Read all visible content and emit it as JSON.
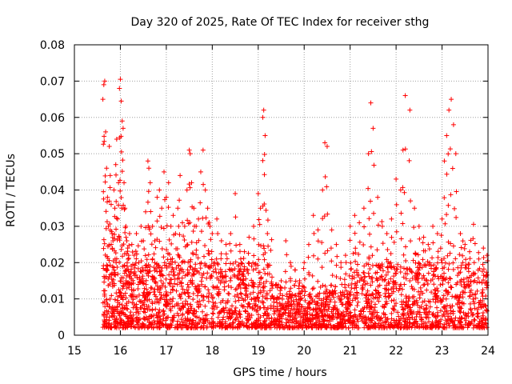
{
  "chart_data": {
    "type": "scatter",
    "title": "Day 320 of 2025, Rate Of TEC Index for receiver sthg",
    "xlabel": "GPS time / hours",
    "ylabel": "ROTI / TECUs",
    "xlim": [
      15,
      24
    ],
    "ylim": [
      0,
      0.08
    ],
    "x_ticks": [
      15,
      16,
      17,
      18,
      19,
      20,
      21,
      22,
      23,
      24
    ],
    "x_tick_labels": [
      "15",
      "16",
      "17",
      "18",
      "19",
      "20",
      "21",
      "22",
      "23",
      "24"
    ],
    "y_ticks": [
      0,
      0.01,
      0.02,
      0.03,
      0.04,
      0.05,
      0.06,
      0.07,
      0.08
    ],
    "y_tick_labels": [
      "0",
      "0.01",
      "0.02",
      "0.03",
      "0.04",
      "0.05",
      "0.06",
      "0.07",
      "0.08"
    ],
    "grid": true,
    "marker": "+",
    "marker_color": "#ff0000",
    "series": [
      {
        "name": "ROTI",
        "x": [
          15.62,
          15.64,
          15.66,
          15.68,
          15.7,
          15.72,
          15.74,
          15.76,
          15.78,
          15.8,
          15.82,
          15.84,
          15.86,
          15.88,
          15.9,
          15.92,
          15.94,
          15.96,
          15.98,
          16.0,
          16.02,
          16.04,
          16.06,
          16.08,
          16.1,
          16.12,
          16.14,
          16.16,
          16.18,
          16.2,
          16.25,
          16.3,
          16.35,
          16.4,
          16.45,
          16.5,
          16.55,
          16.6,
          16.62,
          16.65,
          16.7,
          16.75,
          16.8,
          16.85,
          16.9,
          16.95,
          17.0,
          17.05,
          17.1,
          17.15,
          17.2,
          17.25,
          17.3,
          17.35,
          17.4,
          17.45,
          17.5,
          17.52,
          17.55,
          17.6,
          17.65,
          17.7,
          17.75,
          17.8,
          17.85,
          17.9,
          17.95,
          18.0,
          18.1,
          18.2,
          18.3,
          18.4,
          18.5,
          18.6,
          18.7,
          18.8,
          18.9,
          19.0,
          19.05,
          19.1,
          19.12,
          19.15,
          19.2,
          19.3,
          19.4,
          19.5,
          19.6,
          19.7,
          19.8,
          19.9,
          20.0,
          20.1,
          20.2,
          20.3,
          20.4,
          20.45,
          20.5,
          20.6,
          20.7,
          20.8,
          20.9,
          21.0,
          21.1,
          21.2,
          21.3,
          21.4,
          21.45,
          21.5,
          21.6,
          21.7,
          21.8,
          21.9,
          22.0,
          22.1,
          22.15,
          22.2,
          22.3,
          22.4,
          22.5,
          22.6,
          22.7,
          22.8,
          22.9,
          23.0,
          23.05,
          23.1,
          23.15,
          23.2,
          23.25,
          23.3,
          23.4,
          23.5,
          23.6,
          23.7,
          23.8,
          23.9,
          23.98
        ],
        "y": [
          0.065,
          0.069,
          0.07,
          0.056,
          0.046,
          0.038,
          0.03,
          0.052,
          0.044,
          0.036,
          0.028,
          0.026,
          0.04,
          0.035,
          0.047,
          0.054,
          0.032,
          0.042,
          0.068,
          0.0705,
          0.0645,
          0.059,
          0.057,
          0.042,
          0.035,
          0.03,
          0.026,
          0.024,
          0.022,
          0.028,
          0.025,
          0.022,
          0.028,
          0.02,
          0.03,
          0.026,
          0.034,
          0.048,
          0.046,
          0.042,
          0.03,
          0.026,
          0.038,
          0.04,
          0.035,
          0.045,
          0.038,
          0.042,
          0.03,
          0.033,
          0.028,
          0.035,
          0.044,
          0.031,
          0.03,
          0.04,
          0.051,
          0.05,
          0.042,
          0.035,
          0.03,
          0.032,
          0.045,
          0.051,
          0.04,
          0.035,
          0.03,
          0.028,
          0.032,
          0.026,
          0.025,
          0.028,
          0.039,
          0.025,
          0.023,
          0.027,
          0.03,
          0.039,
          0.035,
          0.06,
          0.062,
          0.055,
          0.028,
          0.016,
          0.014,
          0.015,
          0.026,
          0.02,
          0.018,
          0.015,
          0.02,
          0.025,
          0.033,
          0.029,
          0.04,
          0.053,
          0.052,
          0.029,
          0.025,
          0.02,
          0.022,
          0.03,
          0.033,
          0.031,
          0.035,
          0.05,
          0.064,
          0.057,
          0.038,
          0.03,
          0.028,
          0.032,
          0.043,
          0.04,
          0.051,
          0.066,
          0.062,
          0.035,
          0.03,
          0.027,
          0.025,
          0.03,
          0.028,
          0.032,
          0.048,
          0.055,
          0.062,
          0.065,
          0.058,
          0.05,
          0.028,
          0.025,
          0.023,
          0.02,
          0.021,
          0.024,
          0.022
        ]
      }
    ],
    "background_band": {
      "description": "dense cluster of ROTI values between x=15.6 and x=24",
      "y_min": 0.002,
      "y_max": 0.02,
      "typical": 0.008
    }
  }
}
